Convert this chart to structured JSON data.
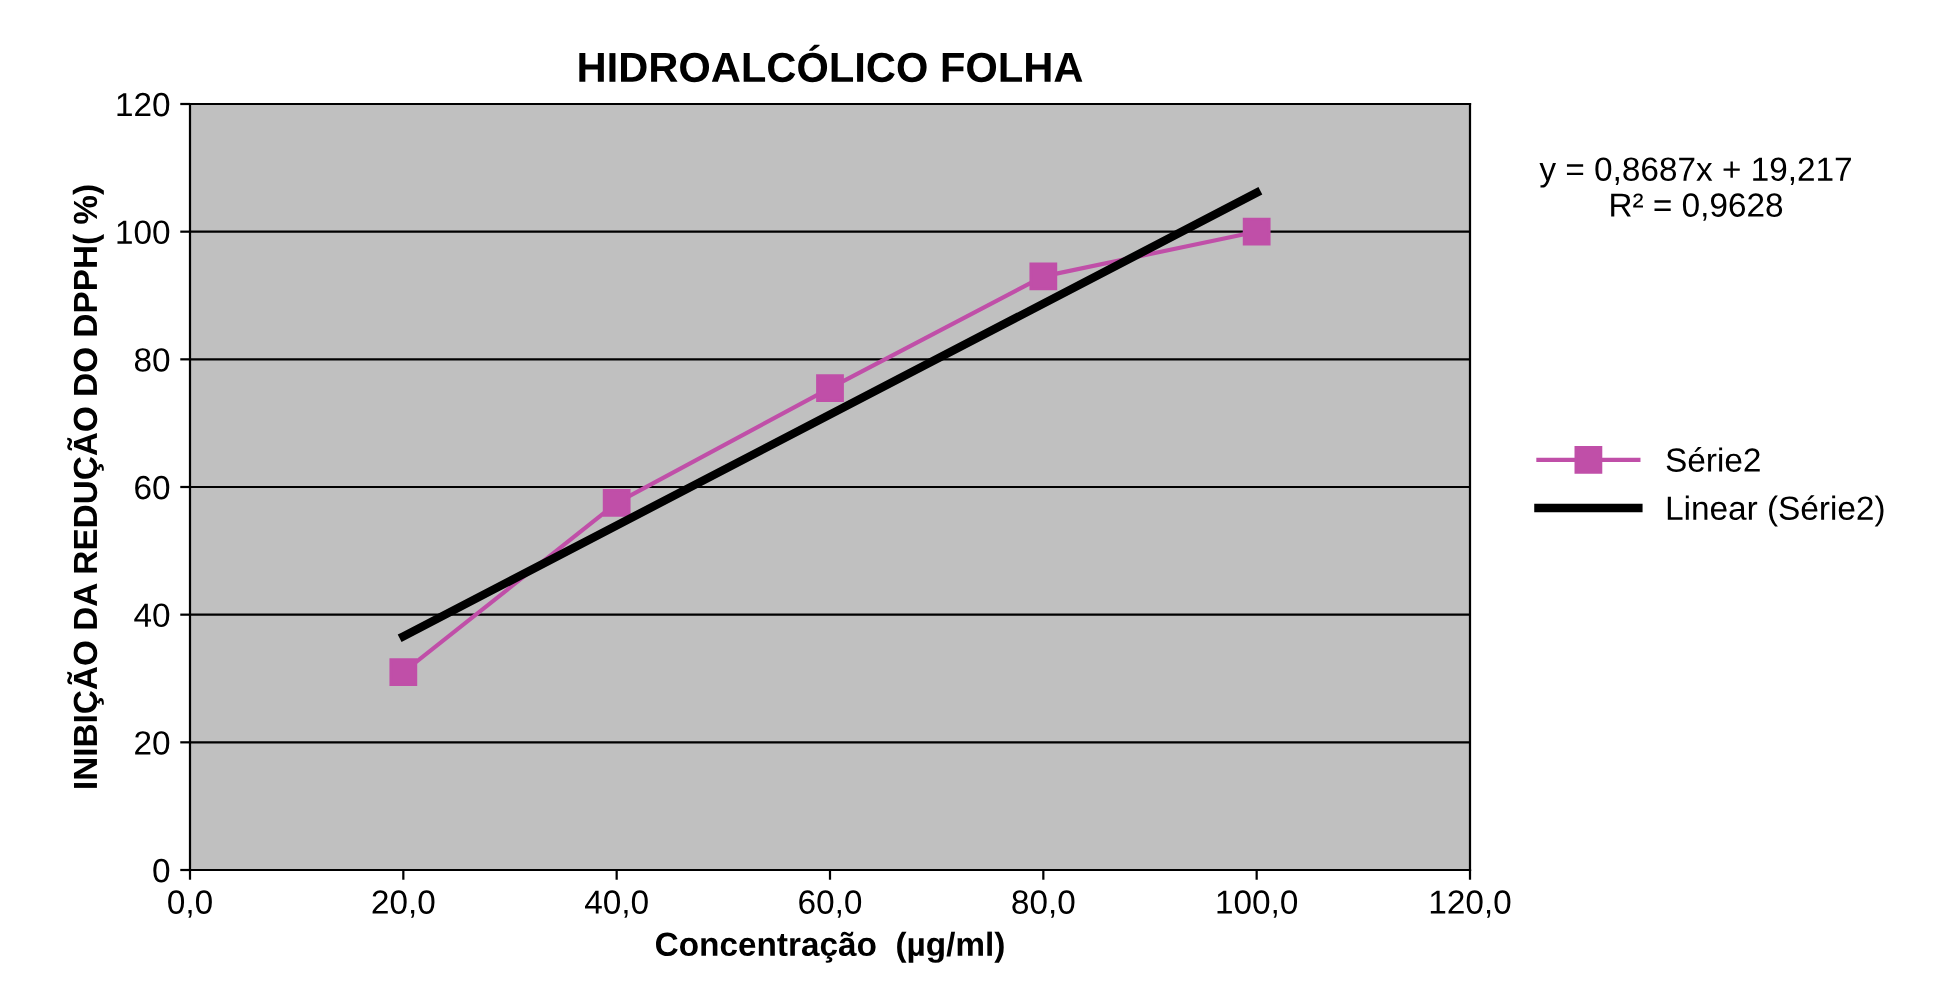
{
  "chart_data": {
    "type": "line",
    "title": "HIDROALCÓLICO FOLHA",
    "xlabel": "Concentração  (µg/ml)",
    "ylabel": "INIBIÇÃO DA REDUÇÃO DO DPPH( %)",
    "x": [
      20,
      40,
      60,
      80,
      100
    ],
    "series": [
      {
        "name": "Série2",
        "color": "#c04fa8",
        "values": [
          31,
          57.5,
          75.5,
          93,
          100
        ],
        "marker": "square"
      },
      {
        "name": "Linear (Série2)",
        "color": "#000000",
        "type": "line",
        "x": [
          20,
          100
        ],
        "values": [
          36.6,
          106.1
        ],
        "marker": "none"
      }
    ],
    "xlim": [
      0,
      120
    ],
    "xticks": [
      {
        "value": 0,
        "label": "0,0"
      },
      {
        "value": 20,
        "label": "20,0"
      },
      {
        "value": 40,
        "label": "40,0"
      },
      {
        "value": 60,
        "label": "60,0"
      },
      {
        "value": 80,
        "label": "80,0"
      },
      {
        "value": 100,
        "label": "100,0"
      },
      {
        "value": 120,
        "label": "120,0"
      }
    ],
    "ylim": [
      0,
      120
    ],
    "yticks": [
      0,
      20,
      40,
      60,
      80,
      100,
      120
    ],
    "grid": "y",
    "legend": "right",
    "annotations": [
      "y = 0,8687x + 19,217\nR² = 0,9628"
    ]
  }
}
